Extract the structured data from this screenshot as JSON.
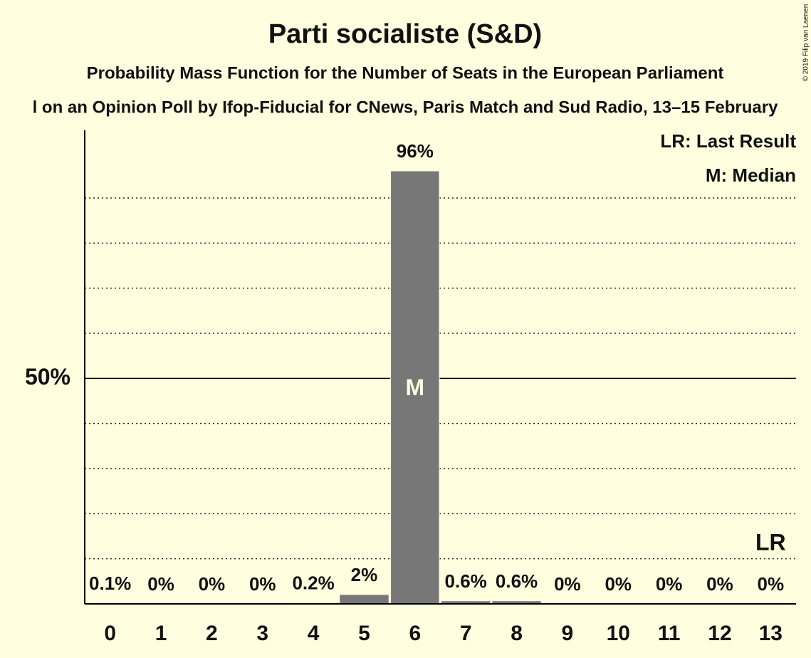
{
  "chart_data": {
    "type": "bar",
    "title": "Parti socialiste (S&D)",
    "subtitle": "Probability Mass Function for the Number of Seats in the European Parliament",
    "source": "l on an Opinion Poll by Ifop-Fiducial for CNews, Paris Match and Sud Radio, 13–15 February",
    "copyright": "© 2019 Filip van Laenen",
    "categories": [
      "0",
      "1",
      "2",
      "3",
      "4",
      "5",
      "6",
      "7",
      "8",
      "9",
      "10",
      "11",
      "12",
      "13"
    ],
    "values": [
      0.1,
      0,
      0,
      0,
      0.2,
      2,
      96,
      0.6,
      0.6,
      0,
      0,
      0,
      0,
      0
    ],
    "value_labels": [
      "0.1%",
      "0%",
      "0%",
      "0%",
      "0.2%",
      "2%",
      "96%",
      "0.6%",
      "0.6%",
      "0%",
      "0%",
      "0%",
      "0%",
      "0%"
    ],
    "color": "#777777",
    "ylim": [
      0,
      105
    ],
    "yticks": [
      {
        "value": 50,
        "label": "50%"
      }
    ],
    "grid_lines": [
      10,
      20,
      30,
      40,
      60,
      70,
      80,
      90
    ],
    "legend": [
      "LR: Last Result",
      "M: Median"
    ],
    "median_index": 6,
    "median_label": "M",
    "last_result_index": 13,
    "last_result_label": "LR"
  }
}
